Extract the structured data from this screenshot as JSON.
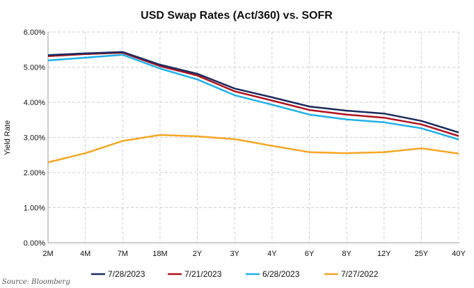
{
  "chart_data": {
    "type": "line",
    "title": "USD Swap Rates (Act/360) vs. SOFR",
    "ylabel": "Yield Rate",
    "xlabel": "",
    "categories": [
      "2M",
      "4M",
      "7M",
      "18M",
      "2Y",
      "3Y",
      "4Y",
      "6Y",
      "8Y",
      "12Y",
      "25Y",
      "40Y"
    ],
    "ylim": [
      0,
      6
    ],
    "yticks": [
      "0.00%",
      "1.00%",
      "2.00%",
      "3.00%",
      "4.00%",
      "5.00%",
      "6.00%"
    ],
    "grid": true,
    "legend_position": "bottom",
    "series": [
      {
        "name": "7/28/2023",
        "color": "#1a2a5e",
        "values": [
          5.34,
          5.39,
          5.43,
          5.07,
          4.81,
          4.39,
          4.14,
          3.88,
          3.76,
          3.68,
          3.47,
          3.14
        ]
      },
      {
        "name": "7/21/2023",
        "color": "#b0121f",
        "values": [
          5.31,
          5.37,
          5.41,
          5.03,
          4.76,
          4.31,
          4.05,
          3.78,
          3.65,
          3.56,
          3.37,
          3.04
        ]
      },
      {
        "name": "6/28/2023",
        "color": "#1fb0ea",
        "values": [
          5.19,
          5.27,
          5.35,
          4.96,
          4.65,
          4.2,
          3.93,
          3.65,
          3.51,
          3.43,
          3.26,
          2.94
        ]
      },
      {
        "name": "7/27/2022",
        "color": "#f5a623",
        "values": [
          2.29,
          2.55,
          2.9,
          3.07,
          3.03,
          2.95,
          2.76,
          2.58,
          2.55,
          2.58,
          2.69,
          2.54
        ]
      }
    ],
    "source": "Source: Bloomberg"
  }
}
